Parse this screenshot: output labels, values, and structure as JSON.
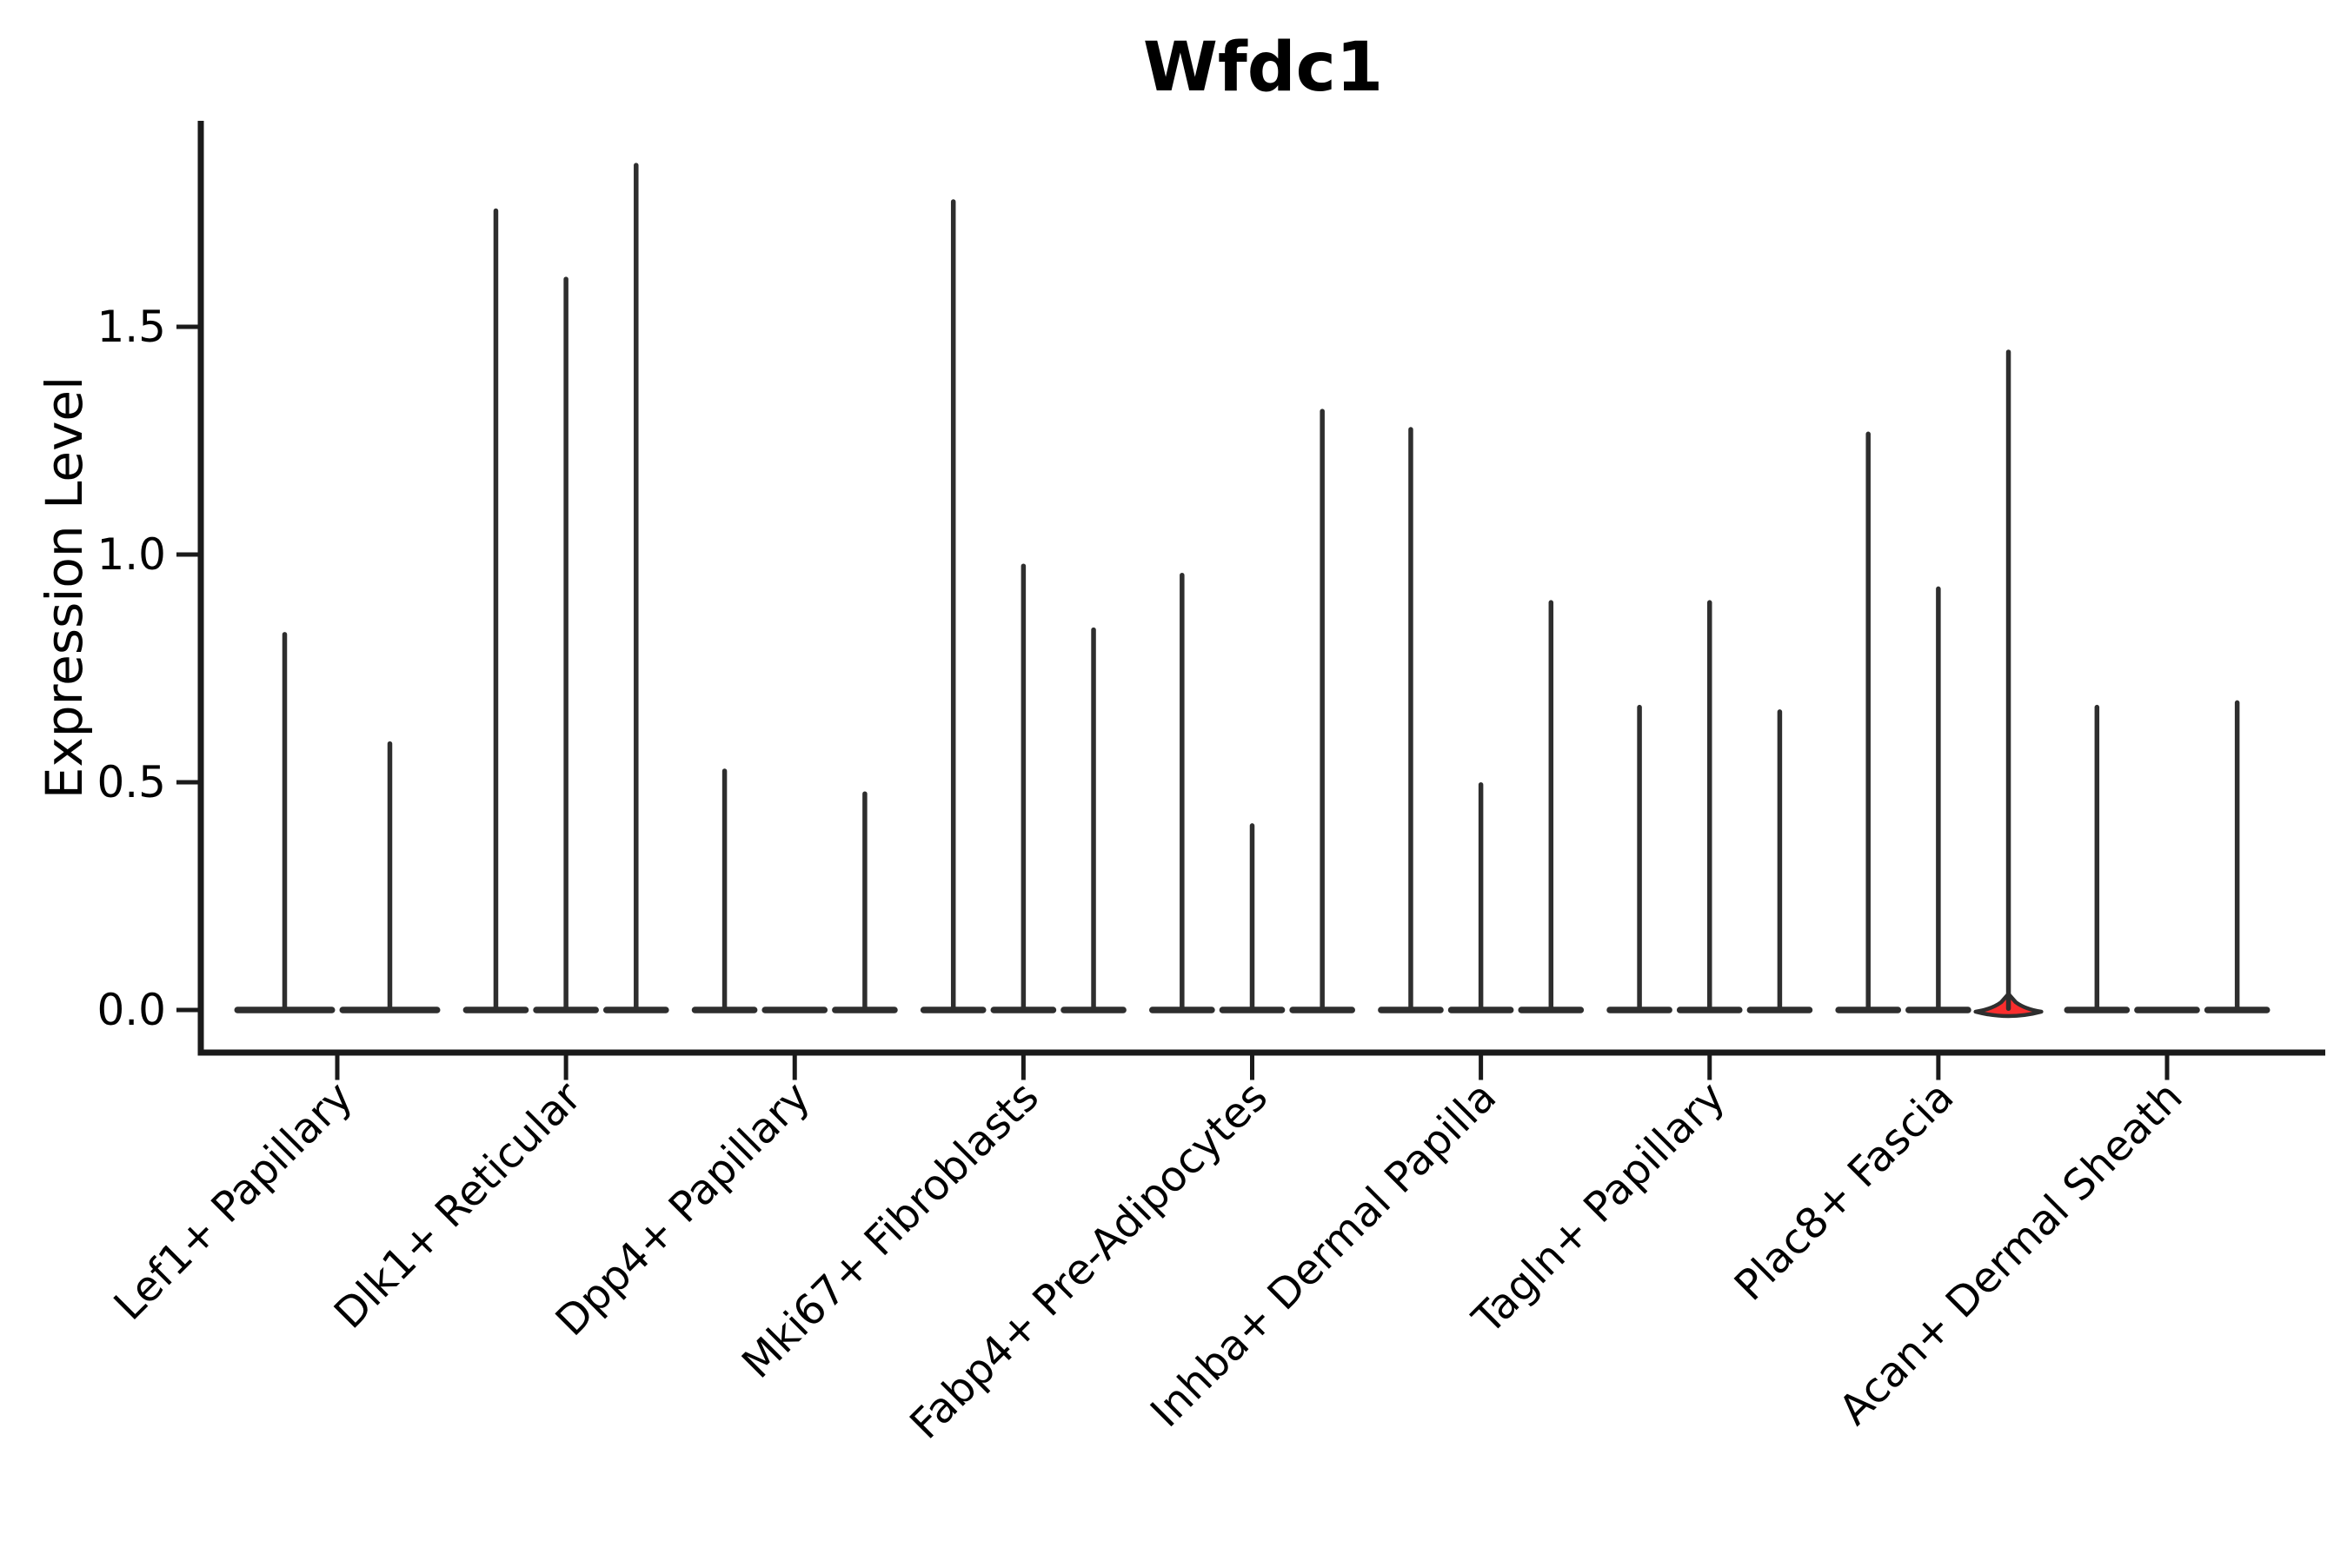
{
  "chart_data": {
    "type": "violin",
    "title": "Wfdc1",
    "ylabel": "Expression Level",
    "xlabel": "",
    "ytick_labels": [
      "0.0",
      "0.5",
      "1.0",
      "1.5"
    ],
    "ytick_values": [
      0,
      0.5,
      1.0,
      1.5
    ],
    "ylim": [
      -0.09,
      1.95
    ],
    "grid": false,
    "legend": "none",
    "style_note": "Collapsed violins: each violin is a flat dark bar at y=0 with a thin vertical spike up to the maximum expression value; only the highlighted violin shows a visible red density bump near 0.",
    "categories": [
      "Lef1+ Papillary",
      "Dlk1+ Reticular",
      "Dpp4+ Papillary",
      "Mki67+ Fibroblasts",
      "Fabp4+ Pre-Adipocytes",
      "Inhba+ Dermal Papilla",
      "Tagln+ Papillary",
      "Plac8+ Fascia",
      "Acan+ Dermal Sheath"
    ],
    "groups": [
      {
        "category": "Lef1+ Papillary",
        "violin_maxima": [
          0.83,
          0.59
        ],
        "highlight_index": null
      },
      {
        "category": "Dlk1+ Reticular",
        "violin_maxima": [
          1.76,
          1.61,
          1.86
        ],
        "highlight_index": null
      },
      {
        "category": "Dpp4+ Papillary",
        "violin_maxima": [
          0.53,
          0.0,
          0.48
        ],
        "highlight_index": null
      },
      {
        "category": "Mki67+ Fibroblasts",
        "violin_maxima": [
          1.78,
          0.98,
          0.84
        ],
        "highlight_index": null
      },
      {
        "category": "Fabp4+ Pre-Adipocytes",
        "violin_maxima": [
          0.96,
          0.41,
          1.32
        ],
        "highlight_index": null
      },
      {
        "category": "Inhba+ Dermal Papilla",
        "violin_maxima": [
          1.28,
          0.5,
          0.9
        ],
        "highlight_index": null
      },
      {
        "category": "Tagln+ Papillary",
        "violin_maxima": [
          0.67,
          0.9,
          0.66
        ],
        "highlight_index": null
      },
      {
        "category": "Plac8+ Fascia",
        "violin_maxima": [
          1.27,
          0.93,
          1.45
        ],
        "highlight_index": 2
      },
      {
        "category": "Acan+ Dermal Sheath",
        "violin_maxima": [
          0.67,
          0.0,
          0.68
        ],
        "highlight_index": null
      }
    ],
    "highlight_bump_value": 0.03,
    "colors": {
      "ink": "#2e2e2e",
      "spine": "#1a1a1a",
      "highlight_fill": "#fa2d2d",
      "text": "#000000",
      "background": "#ffffff"
    }
  }
}
